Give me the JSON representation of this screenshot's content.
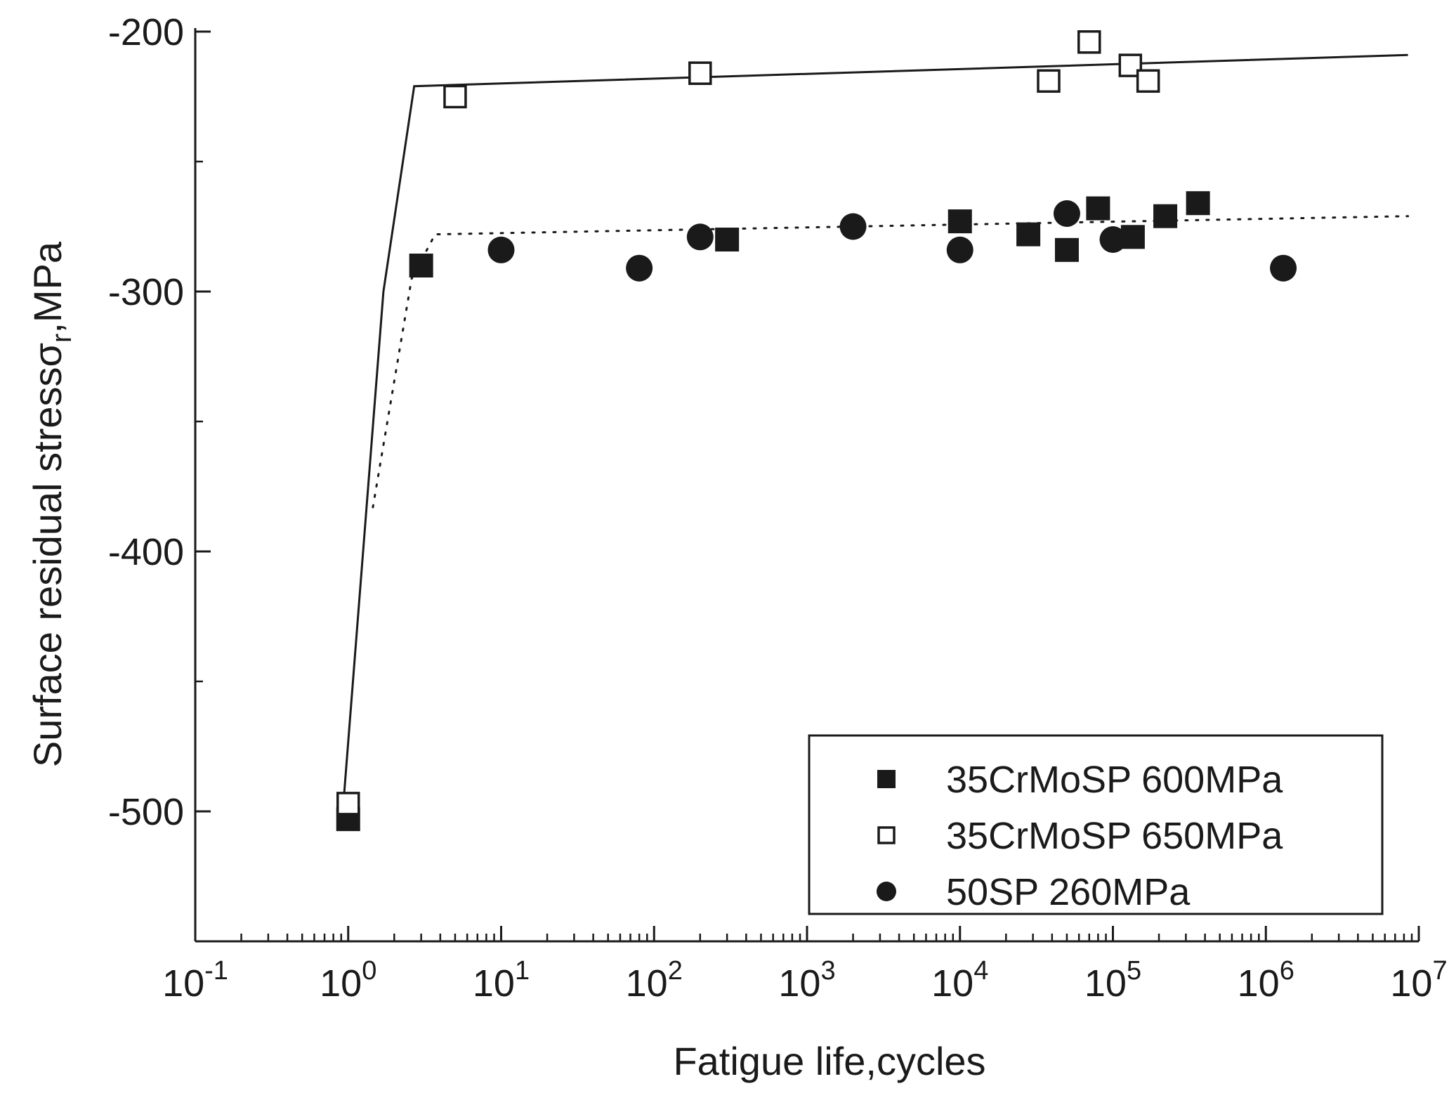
{
  "chart_data": {
    "type": "scatter",
    "xlabel": "Fatigue life,cycles",
    "ylabel": "Surface residual stressσ",
    "ylabel_subscript": "r",
    "ylabel_unit": ",MPa",
    "x_scale": "log",
    "xlim": [
      0.1,
      10000000
    ],
    "ylim": [
      -550,
      -200
    ],
    "x_ticks": [
      {
        "value": 0.1,
        "base": "10",
        "exp": "-1"
      },
      {
        "value": 1,
        "base": "10",
        "exp": "0"
      },
      {
        "value": 10,
        "base": "10",
        "exp": "1"
      },
      {
        "value": 100,
        "base": "10",
        "exp": "2"
      },
      {
        "value": 1000,
        "base": "10",
        "exp": "3"
      },
      {
        "value": 10000,
        "base": "10",
        "exp": "4"
      },
      {
        "value": 100000,
        "base": "10",
        "exp": "5"
      },
      {
        "value": 1000000,
        "base": "10",
        "exp": "6"
      },
      {
        "value": 10000000,
        "base": "10",
        "exp": "7"
      }
    ],
    "y_ticks": [
      {
        "value": -200,
        "label": "-200"
      },
      {
        "value": -300,
        "label": "-300"
      },
      {
        "value": -400,
        "label": "-400"
      },
      {
        "value": -500,
        "label": "-500"
      }
    ],
    "grid": false,
    "legend_position": "bottom-right",
    "series": [
      {
        "name": "35CrMoSP 600MPa",
        "marker": "square-filled",
        "color": "#1a1a1a",
        "points": [
          {
            "x": 1,
            "y": -503
          },
          {
            "x": 3,
            "y": -290
          },
          {
            "x": 300,
            "y": -280
          },
          {
            "x": 10000,
            "y": -273
          },
          {
            "x": 28000,
            "y": -278
          },
          {
            "x": 50000,
            "y": -284
          },
          {
            "x": 80000,
            "y": -268
          },
          {
            "x": 135000,
            "y": -279
          },
          {
            "x": 220000,
            "y": -271
          },
          {
            "x": 360000,
            "y": -266
          }
        ]
      },
      {
        "name": "35CrMoSP 650MPa",
        "marker": "square-open",
        "color": "#1a1a1a",
        "points": [
          {
            "x": 1,
            "y": -497
          },
          {
            "x": 5,
            "y": -225
          },
          {
            "x": 200,
            "y": -216
          },
          {
            "x": 38000,
            "y": -219
          },
          {
            "x": 70000,
            "y": -204
          },
          {
            "x": 130000,
            "y": -213
          },
          {
            "x": 170000,
            "y": -219
          }
        ]
      },
      {
        "name": "50SP 260MPa",
        "marker": "circle-filled",
        "color": "#1a1a1a",
        "points": [
          {
            "x": 10,
            "y": -284
          },
          {
            "x": 80,
            "y": -291
          },
          {
            "x": 200,
            "y": -279
          },
          {
            "x": 2000,
            "y": -275
          },
          {
            "x": 10000,
            "y": -284
          },
          {
            "x": 50000,
            "y": -270
          },
          {
            "x": 100000,
            "y": -280
          },
          {
            "x": 1300000,
            "y": -291
          }
        ]
      }
    ],
    "fit_lines": [
      {
        "style": "solid",
        "color": "#1a1a1a",
        "points": [
          {
            "x": 0.93,
            "y": -497
          },
          {
            "x": 1.7,
            "y": -300
          },
          {
            "x": 2.7,
            "y": -221
          },
          {
            "x": 8500000,
            "y": -209
          }
        ]
      },
      {
        "style": "dotted",
        "color": "#1a1a1a",
        "points": [
          {
            "x": 1.45,
            "y": -383
          },
          {
            "x": 2.6,
            "y": -295
          },
          {
            "x": 3.7,
            "y": -278
          },
          {
            "x": 8500000,
            "y": -271
          }
        ]
      }
    ]
  }
}
